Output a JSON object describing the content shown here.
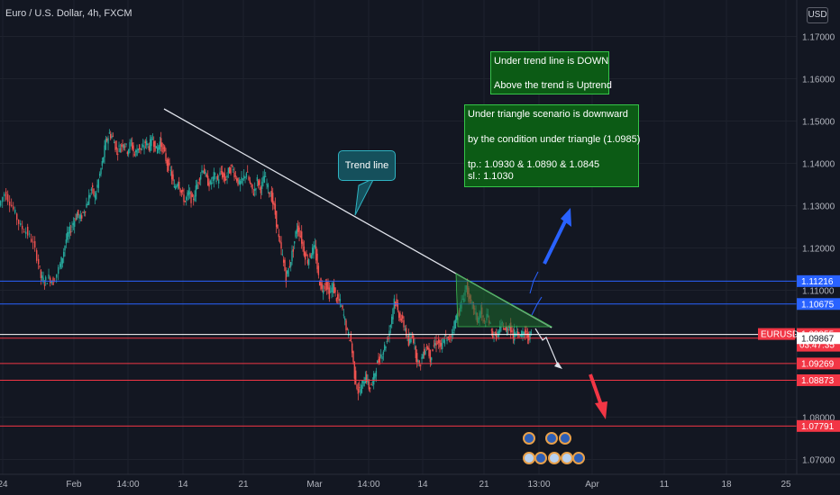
{
  "header": {
    "title": "Euro / U.S. Dollar, 4h, FXCM",
    "currency_button": "USD"
  },
  "annotations": {
    "trend_note_1": "Under trend line is DOWN",
    "trend_note_2": "Above the trend is Uptrend",
    "scenario_1": "Under triangle scenario is downward",
    "scenario_2": "by the condition under triangle (1.0985)",
    "scenario_3": "tp.: 1.0930 & 1.0890 & 1.0845",
    "scenario_4": "sl.: 1.1030",
    "callout": "Trend line"
  },
  "colors": {
    "background": "#131722",
    "up": "#26a69a",
    "down": "#ef5350",
    "blue_level": "#2962ff",
    "red_level": "#f23645",
    "white_level": "#ffffff",
    "note_bg": "#0c5b15",
    "callout_bg": "#15505c"
  },
  "chart_data": {
    "type": "candlestick",
    "symbol": "EURUSD",
    "y_axis": {
      "ticks": [
        "1.17000",
        "1.16000",
        "1.15000",
        "1.14000",
        "1.13000",
        "1.12000",
        "1.11000",
        "1.08000",
        "1.07000"
      ],
      "range": [
        1.066,
        1.178
      ]
    },
    "x_axis": {
      "ticks": [
        "24",
        "Feb",
        "14:00",
        "14",
        "21",
        "Mar",
        "14:00",
        "14",
        "21",
        "13:00",
        "Apr",
        "11",
        "18",
        "25"
      ]
    },
    "levels": [
      {
        "label": "1.11216",
        "value": 1.11216,
        "color": "#2962ff"
      },
      {
        "label": "1.10675",
        "value": 1.10675,
        "color": "#2962ff"
      },
      {
        "label": "1.09955",
        "value": 1.09955,
        "color": "#ffffff",
        "countdown": "03:47:35",
        "name": "EURUSD"
      },
      {
        "label": "1.09867",
        "value": 1.09867,
        "color": "#f23645"
      },
      {
        "label": "1.09269",
        "value": 1.09269,
        "color": "#f23645"
      },
      {
        "label": "1.08873",
        "value": 1.08873,
        "color": "#f23645"
      },
      {
        "label": "1.07791",
        "value": 1.07791,
        "color": "#f23645"
      }
    ],
    "path": [
      [
        0,
        1.13
      ],
      [
        6,
        1.133
      ],
      [
        12,
        1.131
      ],
      [
        18,
        1.128
      ],
      [
        24,
        1.125
      ],
      [
        30,
        1.124
      ],
      [
        36,
        1.122
      ],
      [
        42,
        1.118
      ],
      [
        46,
        1.113
      ],
      [
        50,
        1.112
      ],
      [
        55,
        1.113
      ],
      [
        60,
        1.112
      ],
      [
        66,
        1.115
      ],
      [
        70,
        1.118
      ],
      [
        74,
        1.122
      ],
      [
        78,
        1.124
      ],
      [
        82,
        1.126
      ],
      [
        86,
        1.128
      ],
      [
        90,
        1.127
      ],
      [
        94,
        1.129
      ],
      [
        98,
        1.131
      ],
      [
        102,
        1.134
      ],
      [
        106,
        1.132
      ],
      [
        110,
        1.136
      ],
      [
        114,
        1.14
      ],
      [
        118,
        1.145
      ],
      [
        122,
        1.147
      ],
      [
        126,
        1.146
      ],
      [
        130,
        1.143
      ],
      [
        134,
        1.144
      ],
      [
        138,
        1.145
      ],
      [
        142,
        1.143
      ],
      [
        146,
        1.145
      ],
      [
        150,
        1.142
      ],
      [
        154,
        1.144
      ],
      [
        158,
        1.143
      ],
      [
        162,
        1.145
      ],
      [
        166,
        1.144
      ],
      [
        170,
        1.146
      ],
      [
        174,
        1.143
      ],
      [
        178,
        1.145
      ],
      [
        182,
        1.143
      ],
      [
        186,
        1.14
      ],
      [
        190,
        1.138
      ],
      [
        194,
        1.134
      ],
      [
        198,
        1.136
      ],
      [
        202,
        1.133
      ],
      [
        206,
        1.131
      ],
      [
        210,
        1.133
      ],
      [
        214,
        1.131
      ],
      [
        218,
        1.134
      ],
      [
        222,
        1.137
      ],
      [
        226,
        1.139
      ],
      [
        230,
        1.136
      ],
      [
        234,
        1.135
      ],
      [
        238,
        1.137
      ],
      [
        242,
        1.136
      ],
      [
        246,
        1.138
      ],
      [
        250,
        1.136
      ],
      [
        254,
        1.138
      ],
      [
        258,
        1.139
      ],
      [
        262,
        1.137
      ],
      [
        266,
        1.135
      ],
      [
        270,
        1.136
      ],
      [
        274,
        1.138
      ],
      [
        278,
        1.135
      ],
      [
        282,
        1.133
      ],
      [
        286,
        1.136
      ],
      [
        290,
        1.134
      ],
      [
        294,
        1.137
      ],
      [
        298,
        1.134
      ],
      [
        302,
        1.132
      ],
      [
        306,
        1.128
      ],
      [
        310,
        1.122
      ],
      [
        314,
        1.118
      ],
      [
        318,
        1.113
      ],
      [
        322,
        1.116
      ],
      [
        326,
        1.12
      ],
      [
        330,
        1.125
      ],
      [
        334,
        1.123
      ],
      [
        338,
        1.119
      ],
      [
        342,
        1.117
      ],
      [
        346,
        1.119
      ],
      [
        350,
        1.12
      ],
      [
        354,
        1.113
      ],
      [
        358,
        1.11
      ],
      [
        362,
        1.112
      ],
      [
        366,
        1.109
      ],
      [
        370,
        1.111
      ],
      [
        374,
        1.108
      ],
      [
        378,
        1.107
      ],
      [
        382,
        1.104
      ],
      [
        386,
        1.1
      ],
      [
        390,
        1.098
      ],
      [
        394,
        1.09
      ],
      [
        398,
        1.086
      ],
      [
        402,
        1.087
      ],
      [
        406,
        1.09
      ],
      [
        410,
        1.087
      ],
      [
        414,
        1.088
      ],
      [
        418,
        1.092
      ],
      [
        422,
        1.094
      ],
      [
        426,
        1.096
      ],
      [
        430,
        1.098
      ],
      [
        434,
        1.102
      ],
      [
        438,
        1.108
      ],
      [
        442,
        1.105
      ],
      [
        446,
        1.103
      ],
      [
        450,
        1.101
      ],
      [
        454,
        1.097
      ],
      [
        458,
        1.1
      ],
      [
        462,
        1.095
      ],
      [
        466,
        1.092
      ],
      [
        470,
        1.095
      ],
      [
        474,
        1.097
      ],
      [
        478,
        1.094
      ],
      [
        482,
        1.097
      ],
      [
        486,
        1.098
      ],
      [
        490,
        1.096
      ],
      [
        494,
        1.099
      ],
      [
        498,
        1.098
      ],
      [
        502,
        1.1
      ],
      [
        506,
        1.103
      ],
      [
        510,
        1.105
      ],
      [
        514,
        1.108
      ],
      [
        518,
        1.111
      ],
      [
        522,
        1.107
      ],
      [
        526,
        1.106
      ],
      [
        530,
        1.103
      ],
      [
        534,
        1.105
      ],
      [
        538,
        1.102
      ],
      [
        542,
        1.104
      ],
      [
        546,
        1.1
      ],
      [
        550,
        1.099
      ],
      [
        554,
        1.1
      ],
      [
        558,
        1.102
      ],
      [
        562,
        1.1
      ],
      [
        566,
        1.102
      ],
      [
        570,
        1.099
      ],
      [
        574,
        1.101
      ],
      [
        578,
        1.099
      ],
      [
        582,
        1.1
      ],
      [
        586,
        1.099
      ],
      [
        590,
        1.0995
      ]
    ]
  }
}
